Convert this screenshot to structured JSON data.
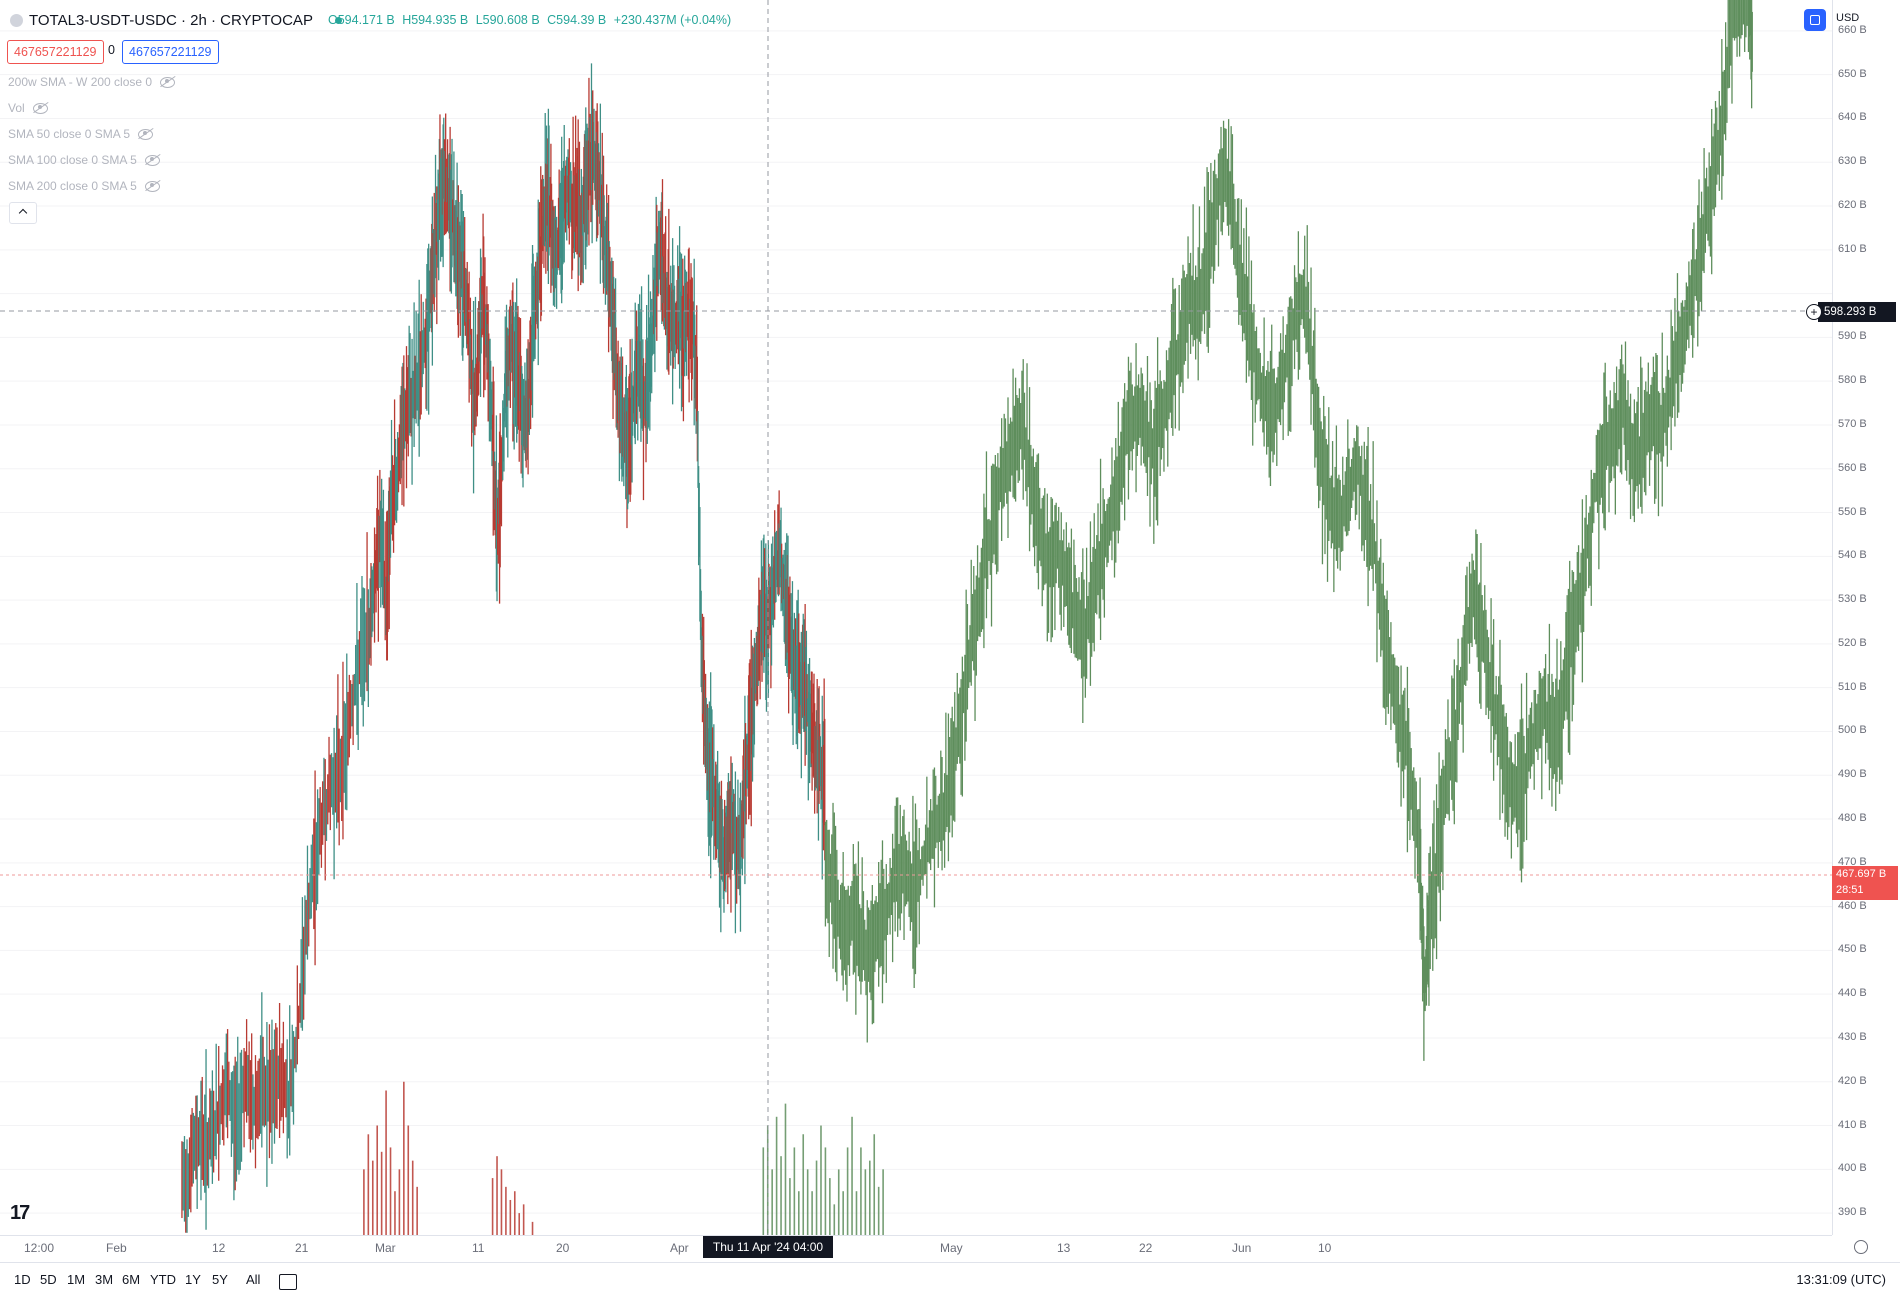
{
  "symbol": {
    "title": "TOTAL3-USDT-USDC · 2h · CRYPTOCAP",
    "ohlc": {
      "open": "O594.171 B",
      "high": "H594.935 B",
      "low": "L590.608 B",
      "close": "C594.39 B",
      "change": "+230.437M (+0.04%)"
    }
  },
  "quote_boxes": {
    "sell": "467657221129",
    "spread": "0",
    "buy": "467657221129"
  },
  "indicators": [
    "200w SMA - W 200 close 0",
    "Vol",
    "SMA 50 close 0 SMA 5",
    "SMA 100 close 0 SMA 5",
    "SMA 200 close 0 SMA 5"
  ],
  "currency": "USD",
  "crosshair": {
    "price": "598.293 B",
    "date": "Thu 11 Apr '24  04:00"
  },
  "last_price": {
    "value": "467.697 B",
    "countdown": "28:51"
  },
  "timeframes": [
    "1D",
    "5D",
    "1M",
    "3M",
    "6M",
    "YTD",
    "1Y",
    "5Y",
    "All"
  ],
  "clock": "13:31:09 (UTC)",
  "colors": {
    "up": "#26a69a",
    "down": "#ef5350",
    "segment1": "#b83a32",
    "segment2": "#5e8e5c",
    "accent": "#2962ff"
  },
  "chart_data": {
    "type": "line",
    "ylabel": "",
    "ylim": [
      385,
      665
    ],
    "y_ticks": [
      "660 B",
      "650 B",
      "640 B",
      "630 B",
      "620 B",
      "610 B",
      "590 B",
      "580 B",
      "570 B",
      "560 B",
      "550 B",
      "540 B",
      "530 B",
      "520 B",
      "510 B",
      "500 B",
      "490 B",
      "480 B",
      "470 B",
      "460 B",
      "450 B",
      "440 B",
      "430 B",
      "420 B",
      "410 B",
      "400 B",
      "390 B"
    ],
    "x_ticks": [
      "12:00",
      "Feb",
      "12",
      "21",
      "Mar",
      "11",
      "20",
      "Apr",
      "May",
      "13",
      "22",
      "Jun",
      "10"
    ],
    "series": [
      {
        "values": [
          [
            0.205,
            395
          ],
          [
            0.215,
            402
          ],
          [
            0.225,
            408
          ],
          [
            0.235,
            405
          ],
          [
            0.245,
            412
          ],
          [
            0.255,
            418
          ],
          [
            0.265,
            410
          ],
          [
            0.275,
            420
          ],
          [
            0.285,
            414
          ],
          [
            0.295,
            418
          ],
          [
            0.305,
            415
          ],
          [
            0.315,
            422
          ],
          [
            0.325,
            417
          ],
          [
            0.335,
            430
          ],
          [
            0.345,
            455
          ],
          [
            0.355,
            470
          ],
          [
            0.365,
            482
          ],
          [
            0.375,
            488
          ],
          [
            0.385,
            492
          ],
          [
            0.395,
            505
          ],
          [
            0.405,
            515
          ],
          [
            0.415,
            522
          ],
          [
            0.422,
            535
          ],
          [
            0.428,
            545
          ],
          [
            0.435,
            530
          ],
          [
            0.44,
            550
          ],
          [
            0.448,
            560
          ],
          [
            0.455,
            570
          ],
          [
            0.462,
            575
          ],
          [
            0.47,
            580
          ],
          [
            0.478,
            588
          ],
          [
            0.485,
            600
          ],
          [
            0.49,
            610
          ],
          [
            0.495,
            620
          ],
          [
            0.5,
            630
          ],
          [
            0.505,
            622
          ],
          [
            0.51,
            618
          ],
          [
            0.515,
            612
          ],
          [
            0.52,
            605
          ],
          [
            0.525,
            598
          ],
          [
            0.53,
            585
          ],
          [
            0.535,
            575
          ],
          [
            0.54,
            590
          ],
          [
            0.545,
            600
          ],
          [
            0.55,
            585
          ],
          [
            0.555,
            568
          ],
          [
            0.56,
            545
          ],
          [
            0.565,
            560
          ],
          [
            0.57,
            580
          ],
          [
            0.575,
            590
          ],
          [
            0.58,
            585
          ],
          [
            0.585,
            578
          ],
          [
            0.59,
            570
          ],
          [
            0.595,
            575
          ],
          [
            0.6,
            590
          ],
          [
            0.605,
            600
          ],
          [
            0.61,
            612
          ],
          [
            0.615,
            622
          ],
          [
            0.62,
            618
          ],
          [
            0.625,
            610
          ],
          [
            0.63,
            612
          ],
          [
            0.635,
            620
          ],
          [
            0.64,
            625
          ],
          [
            0.645,
            618
          ],
          [
            0.65,
            622
          ],
          [
            0.655,
            615
          ],
          [
            0.66,
            625
          ],
          [
            0.665,
            630
          ],
          [
            0.67,
            632
          ],
          [
            0.675,
            625
          ],
          [
            0.68,
            615
          ],
          [
            0.685,
            605
          ],
          [
            0.69,
            595
          ],
          [
            0.695,
            580
          ],
          [
            0.7,
            570
          ],
          [
            0.705,
            565
          ],
          [
            0.71,
            570
          ],
          [
            0.715,
            578
          ],
          [
            0.72,
            585
          ],
          [
            0.725,
            575
          ],
          [
            0.73,
            580
          ],
          [
            0.735,
            592
          ],
          [
            0.74,
            605
          ],
          [
            0.745,
            610
          ],
          [
            0.75,
            598
          ],
          [
            0.755,
            595
          ],
          [
            0.76,
            592
          ],
          [
            0.765,
            598
          ],
          [
            0.77,
            590
          ],
          [
            0.775,
            595
          ],
          [
            0.78,
            594
          ],
          [
            0.785,
            580
          ],
          [
            0.79,
            520
          ],
          [
            0.795,
            500
          ],
          [
            0.8,
            490
          ],
          [
            0.805,
            485
          ],
          [
            0.81,
            478
          ],
          [
            0.815,
            470
          ],
          [
            0.82,
            475
          ],
          [
            0.825,
            482
          ],
          [
            0.83,
            470
          ],
          [
            0.835,
            478
          ],
          [
            0.84,
            490
          ],
          [
            0.845,
            500
          ],
          [
            0.85,
            510
          ],
          [
            0.855,
            518
          ],
          [
            0.86,
            530
          ],
          [
            0.865,
            525
          ],
          [
            0.87,
            532
          ],
          [
            0.875,
            538
          ],
          [
            0.88,
            540
          ],
          [
            0.885,
            528
          ],
          [
            0.89,
            520
          ],
          [
            0.895,
            515
          ],
          [
            0.9,
            510
          ],
          [
            0.905,
            512
          ],
          [
            0.91,
            505
          ],
          [
            0.915,
            500
          ],
          [
            0.92,
            495
          ],
          [
            0.925,
            490
          ],
          [
            0.93,
            488
          ]
        ]
      },
      {
        "values": [
          [
            0.93,
            470
          ],
          [
            0.94,
            462
          ],
          [
            0.95,
            455
          ],
          [
            0.96,
            458
          ],
          [
            0.97,
            452
          ],
          [
            0.98,
            450
          ],
          [
            0.99,
            455
          ],
          [
            1.0,
            460
          ],
          [
            1.01,
            470
          ],
          [
            1.02,
            468
          ],
          [
            1.03,
            462
          ],
          [
            1.04,
            470
          ],
          [
            1.05,
            476
          ],
          [
            1.06,
            480
          ],
          [
            1.07,
            488
          ],
          [
            1.08,
            500
          ],
          [
            1.09,
            515
          ],
          [
            1.1,
            525
          ],
          [
            1.11,
            540
          ],
          [
            1.12,
            548
          ],
          [
            1.13,
            560
          ],
          [
            1.14,
            565
          ],
          [
            1.15,
            570
          ],
          [
            1.16,
            560
          ],
          [
            1.17,
            545
          ],
          [
            1.18,
            538
          ],
          [
            1.19,
            542
          ],
          [
            1.2,
            535
          ],
          [
            1.21,
            528
          ],
          [
            1.22,
            520
          ],
          [
            1.23,
            530
          ],
          [
            1.24,
            540
          ],
          [
            1.25,
            548
          ],
          [
            1.26,
            555
          ],
          [
            1.27,
            568
          ],
          [
            1.28,
            575
          ],
          [
            1.29,
            570
          ],
          [
            1.3,
            565
          ],
          [
            1.31,
            572
          ],
          [
            1.32,
            580
          ],
          [
            1.33,
            590
          ],
          [
            1.34,
            600
          ],
          [
            1.35,
            598
          ],
          [
            1.36,
            608
          ],
          [
            1.37,
            620
          ],
          [
            1.38,
            630
          ],
          [
            1.39,
            615
          ],
          [
            1.4,
            600
          ],
          [
            1.41,
            590
          ],
          [
            1.42,
            580
          ],
          [
            1.43,
            570
          ],
          [
            1.44,
            575
          ],
          [
            1.45,
            585
          ],
          [
            1.46,
            595
          ],
          [
            1.47,
            600
          ],
          [
            1.48,
            580
          ],
          [
            1.49,
            560
          ],
          [
            1.5,
            550
          ],
          [
            1.51,
            548
          ],
          [
            1.52,
            555
          ],
          [
            1.53,
            560
          ],
          [
            1.54,
            550
          ],
          [
            1.55,
            540
          ],
          [
            1.56,
            520
          ],
          [
            1.57,
            510
          ],
          [
            1.58,
            500
          ],
          [
            1.59,
            490
          ],
          [
            1.6,
            470
          ],
          [
            1.605,
            440
          ],
          [
            1.61,
            455
          ],
          [
            1.62,
            470
          ],
          [
            1.63,
            490
          ],
          [
            1.64,
            500
          ],
          [
            1.65,
            520
          ],
          [
            1.66,
            530
          ],
          [
            1.67,
            525
          ],
          [
            1.68,
            510
          ],
          [
            1.69,
            500
          ],
          [
            1.7,
            490
          ],
          [
            1.71,
            485
          ],
          [
            1.72,
            492
          ],
          [
            1.73,
            500
          ],
          [
            1.74,
            505
          ],
          [
            1.75,
            498
          ],
          [
            1.76,
            505
          ],
          [
            1.77,
            520
          ],
          [
            1.78,
            530
          ],
          [
            1.79,
            545
          ],
          [
            1.8,
            560
          ],
          [
            1.81,
            565
          ],
          [
            1.82,
            570
          ],
          [
            1.83,
            575
          ],
          [
            1.84,
            560
          ],
          [
            1.85,
            565
          ],
          [
            1.86,
            572
          ],
          [
            1.87,
            570
          ],
          [
            1.88,
            575
          ],
          [
            1.89,
            585
          ],
          [
            1.9,
            595
          ],
          [
            1.91,
            605
          ],
          [
            1.92,
            615
          ],
          [
            1.93,
            625
          ],
          [
            1.94,
            640
          ],
          [
            1.95,
            660
          ],
          [
            1.96,
            668
          ],
          [
            1.97,
            668
          ],
          [
            1.975,
            655
          ]
        ]
      }
    ],
    "volume_bars": [
      [
        0.41,
        400
      ],
      [
        0.415,
        408
      ],
      [
        0.42,
        402
      ],
      [
        0.425,
        410
      ],
      [
        0.43,
        404
      ],
      [
        0.435,
        418
      ],
      [
        0.44,
        405
      ],
      [
        0.445,
        395
      ],
      [
        0.45,
        400
      ],
      [
        0.455,
        420
      ],
      [
        0.46,
        410
      ],
      [
        0.465,
        402
      ],
      [
        0.47,
        396
      ],
      [
        0.555,
        398
      ],
      [
        0.56,
        403
      ],
      [
        0.565,
        400
      ],
      [
        0.57,
        396
      ],
      [
        0.575,
        393
      ],
      [
        0.58,
        395
      ],
      [
        0.585,
        390
      ],
      [
        0.59,
        392
      ],
      [
        0.6,
        388
      ],
      [
        0.86,
        405
      ],
      [
        0.865,
        410
      ],
      [
        0.87,
        400
      ],
      [
        0.875,
        412
      ],
      [
        0.88,
        403
      ],
      [
        0.885,
        415
      ],
      [
        0.89,
        398
      ],
      [
        0.895,
        405
      ],
      [
        0.9,
        395
      ],
      [
        0.905,
        408
      ],
      [
        0.91,
        400
      ],
      [
        0.915,
        395
      ],
      [
        0.92,
        402
      ],
      [
        0.925,
        410
      ],
      [
        0.93,
        405
      ],
      [
        0.935,
        398
      ],
      [
        0.94,
        392
      ],
      [
        0.945,
        400
      ],
      [
        0.95,
        395
      ],
      [
        0.955,
        405
      ],
      [
        0.96,
        412
      ],
      [
        0.965,
        395
      ],
      [
        0.97,
        405
      ],
      [
        0.975,
        400
      ],
      [
        0.98,
        402
      ],
      [
        0.985,
        408
      ],
      [
        0.99,
        396
      ],
      [
        0.995,
        400
      ]
    ]
  }
}
